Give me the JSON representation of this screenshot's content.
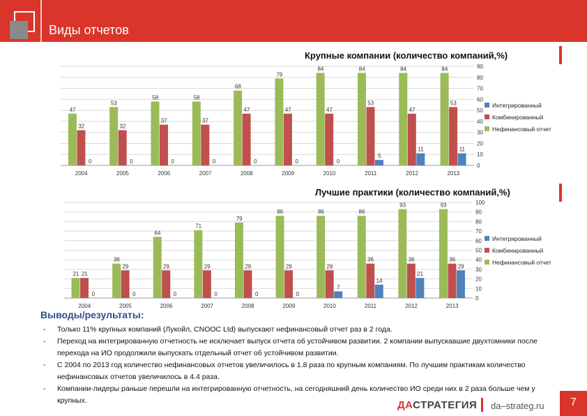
{
  "header": {
    "title": "Виды отчетов"
  },
  "chart_data": [
    {
      "type": "bar",
      "title": "Крупные компании (количество компаний,%)",
      "categories": [
        "2004",
        "2005",
        "2006",
        "2007",
        "2008",
        "2009",
        "2010",
        "2011",
        "2012",
        "2013"
      ],
      "series": [
        {
          "name": "Нефинансовый отчет",
          "color": "#9bbb59",
          "values": [
            47,
            53,
            58,
            58,
            68,
            79,
            84,
            84,
            84,
            84
          ]
        },
        {
          "name": "Комбинированный",
          "color": "#c0504d",
          "values": [
            32,
            32,
            37,
            37,
            47,
            47,
            47,
            53,
            47,
            53
          ]
        },
        {
          "name": "Интегрированный",
          "color": "#4f81bd",
          "values": [
            0,
            0,
            0,
            0,
            0,
            0,
            0,
            5,
            11,
            11
          ]
        }
      ],
      "legend": [
        "Интегрированный",
        "Комбинированный",
        "Нефинансовый отчет"
      ],
      "ylim": [
        0,
        90
      ],
      "yticks": [
        0,
        10,
        20,
        30,
        40,
        50,
        60,
        70,
        80,
        90
      ],
      "grid": true
    },
    {
      "type": "bar",
      "title": "Лучшие практики (количество компаний,%)",
      "categories": [
        "2004",
        "2005",
        "2006",
        "2007",
        "2008",
        "2009",
        "2010",
        "2011",
        "2012",
        "2013"
      ],
      "series": [
        {
          "name": "Нефинансовый отчет",
          "color": "#9bbb59",
          "values": [
            21,
            36,
            64,
            71,
            79,
            86,
            86,
            86,
            93,
            93
          ]
        },
        {
          "name": "Комбинированный",
          "color": "#c0504d",
          "values": [
            21,
            29,
            29,
            29,
            29,
            29,
            29,
            36,
            36,
            36
          ]
        },
        {
          "name": "Интегрированный",
          "color": "#4f81bd",
          "values": [
            0,
            0,
            0,
            0,
            0,
            0,
            7,
            14,
            21,
            29
          ]
        }
      ],
      "legend": [
        "Интегрированный",
        "Комбинированный",
        "Нефинансовый отчет"
      ],
      "ylim": [
        0,
        100
      ],
      "yticks": [
        0,
        10,
        20,
        30,
        40,
        50,
        60,
        70,
        80,
        90,
        100
      ],
      "grid": true
    }
  ],
  "conclusions": {
    "title": "Выводы/результаты:",
    "items": [
      "Только 11% крупных компаний (Лукойл, CNOOC Ltd) выпускают нефинансовый отчет раз в 2 года.",
      "Переход на интегрированную отчетность не исключает выпуск отчета об устойчивом развитии. 2 компании выпускавшие двухтомники после перехода на ИО продолжили выпускать отдельный отчет об устойчивом развитии.",
      "С 2004 по 2013 год количество нефинансовых отчетов увеличилось в 1.8 раза по крупным компаниям. По лучшим практикам количество нефинансовых отчетов увеличилось в 4.4 раза.",
      "Компании-лидеры раньше перешли на интегрированную отчетность, на сегодняшний день количество ИО среди них в 2 раза больше чем у крупных."
    ]
  },
  "footer": {
    "brand_accent": "ДА",
    "brand_rest": "СТРАТЕГИЯ",
    "site": "da–strateg.ru",
    "page_number": "7"
  }
}
